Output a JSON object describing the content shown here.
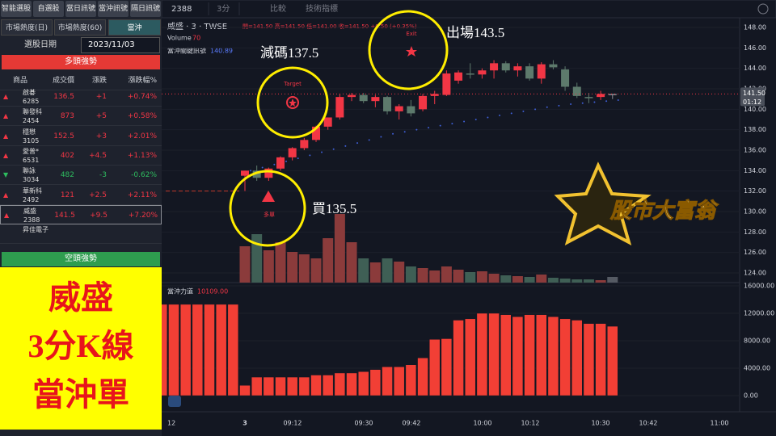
{
  "left_panel": {
    "tabs": [
      "智能選股",
      "自選股",
      "當日訊號",
      "當沖訊號",
      "隔日訊號"
    ],
    "subtabs": [
      "市場熱度(日)",
      "市場熱度(60)",
      "當沖"
    ],
    "date_label": "選股日期",
    "date": "2023/11/03",
    "bull_header": "多頭強勢",
    "columns": [
      "商品",
      "成交價",
      "漲跌",
      "漲跌幅%"
    ],
    "rows": [
      [
        "啟碁",
        "6285",
        "136.5",
        "+1",
        "+0.74%"
      ],
      [
        "聯發科",
        "2454",
        "873",
        "+5",
        "+0.58%"
      ],
      [
        "穩懋",
        "3105",
        "152.5",
        "+3",
        "+2.01%"
      ],
      [
        "愛普*",
        "6531",
        "402",
        "+4.5",
        "+1.13%"
      ],
      [
        "聯詠",
        "3034",
        "482",
        "-3",
        "-0.62%"
      ],
      [
        "華新科",
        "2492",
        "121",
        "+2.5",
        "+2.11%"
      ],
      [
        "威盛",
        "2388",
        "141.5",
        "+9.5",
        "+7.20%"
      ],
      [
        "昇佳電子",
        "",
        "",
        "",
        ""
      ]
    ],
    "bear_header": "空頭強勢",
    "caption": [
      "威盛",
      "3分K線",
      "當沖單"
    ]
  },
  "toolbar": {
    "symbol": "2388",
    "interval": "3分",
    "compare": "比較",
    "indicators": "技術指標"
  },
  "legend": {
    "title": "威盛 · 3 · TWSE",
    "ohlc": "開=141.50 高=141.50 低=141.00 收=141.50 +0.50 (+0.35%)",
    "volume_label": "Volume",
    "volume_value": "70",
    "signal_label": "當沖關鍵訊號",
    "signal_value": "140.89",
    "power_label": "當沖力道",
    "power_value": "10109.00"
  },
  "annotations": {
    "reduce": "減碼137.5",
    "exit": "出場143.5",
    "buy": "買135.5",
    "target_tag": "Target",
    "exit_tag": "Exit",
    "long_tag": "多單"
  },
  "logo": "股市大富翁",
  "chart_data": {
    "type": "candlestick",
    "x_labels": [
      "12",
      "3",
      "09:12",
      "09:30",
      "09:42",
      "10:00",
      "10:12",
      "10:30",
      "10:42",
      "11:00"
    ],
    "open": [
      133.5,
      134,
      133.3,
      134.2,
      135.3,
      136.2,
      137,
      138.3,
      139.2,
      141.2,
      141.4,
      140.8,
      141.2,
      139.8,
      140.3,
      140,
      141.3,
      141.4,
      142.8,
      143.5,
      143.4,
      143.8,
      144.5,
      143.8,
      144.2,
      143,
      144.4,
      143.9,
      142.2,
      141.2,
      141.2,
      141.5
    ],
    "high": [
      134,
      134.5,
      134.3,
      135.4,
      136.3,
      137.2,
      138.4,
      139.2,
      141.5,
      141.6,
      141.6,
      141.4,
      141.3,
      140.5,
      140.9,
      141.5,
      141.8,
      143.8,
      143.8,
      144.5,
      144,
      144.8,
      144.7,
      144.5,
      144.5,
      144.6,
      144.8,
      144.2,
      142.6,
      141.6,
      141.8,
      141.5
    ],
    "low": [
      132,
      133,
      133,
      134,
      135,
      136,
      136.8,
      138,
      139,
      140.8,
      140.6,
      140.2,
      139.5,
      139,
      139.3,
      139.8,
      140.5,
      141.3,
      142.5,
      143,
      143,
      143,
      143.6,
      143.2,
      142.8,
      142.5,
      143.9,
      141.8,
      141.1,
      140.6,
      140.9,
      141
    ],
    "close": [
      134,
      133.3,
      134.2,
      135.3,
      136.2,
      137,
      138.3,
      139.2,
      141.2,
      141.4,
      140.8,
      141.2,
      139.8,
      140.3,
      139.6,
      141.3,
      141.5,
      143.5,
      143.6,
      143.4,
      143.8,
      144.5,
      143.8,
      144.2,
      143,
      144.4,
      144.1,
      142.2,
      141.3,
      141.1,
      141.5,
      141.5
    ],
    "volume": [
      450,
      600,
      400,
      500,
      380,
      350,
      300,
      550,
      850,
      500,
      300,
      250,
      300,
      260,
      200,
      180,
      150,
      200,
      160,
      130,
      140,
      110,
      90,
      80,
      70,
      100,
      60,
      50,
      40,
      40,
      30,
      70
    ],
    "signal": [
      134,
      134.3,
      134.6,
      134.9,
      135.2,
      135.5,
      135.8,
      136.1,
      136.4,
      136.7,
      137,
      137.3,
      137.6,
      137.8,
      138,
      138.2,
      138.4,
      138.6,
      138.8,
      139,
      139.2,
      139.4,
      139.6,
      139.8,
      140,
      140.2,
      140.35,
      140.5,
      140.6,
      140.7,
      140.8,
      140.89
    ],
    "reference_line": 132,
    "up_color": "#f23645",
    "down_color": "#5d7a6c",
    "flat_color": "#8a8d94",
    "signal_color": "#3f5fd6",
    "ylim": [
      124,
      148
    ],
    "yticks": [
      {
        "value": 148,
        "label": "148.00"
      },
      {
        "value": 146,
        "label": "146.00"
      },
      {
        "value": 144,
        "label": "144.00"
      },
      {
        "value": 142,
        "label": "142.00"
      },
      {
        "value": 140,
        "label": "140.00"
      },
      {
        "value": 138,
        "label": "138.00"
      },
      {
        "value": 136,
        "label": "136.00"
      },
      {
        "value": 134,
        "label": "134.00"
      },
      {
        "value": 132,
        "label": "132.00"
      },
      {
        "value": 130,
        "label": "130.00"
      },
      {
        "value": 128,
        "label": "128.00"
      },
      {
        "value": 126,
        "label": "126.00"
      },
      {
        "value": 124,
        "label": "124.00"
      }
    ],
    "last_price": {
      "value": 141.5,
      "label": "141.50"
    },
    "countdown": "01:12",
    "power": {
      "type": "bar",
      "color": "#f23f35",
      "values": [
        13300,
        13300,
        13300,
        13300,
        13300,
        13300,
        13300,
        1500,
        2700,
        2700,
        2700,
        2700,
        2700,
        3000,
        3000,
        3300,
        3300,
        3500,
        3800,
        4200,
        4200,
        4500,
        5500,
        8200,
        8300,
        11000,
        11200,
        12000,
        12000,
        11800,
        11500,
        11800,
        11800,
        11500,
        11200,
        11000,
        10500,
        10500,
        10109
      ],
      "ylim": [
        0,
        16000
      ],
      "yticks": [
        {
          "value": 16000,
          "label": "16000.00"
        },
        {
          "value": 12000,
          "label": "12000.00"
        },
        {
          "value": 8000,
          "label": "8000.00"
        },
        {
          "value": 4000,
          "label": "4000.00"
        },
        {
          "value": 0,
          "label": "0.00"
        }
      ]
    }
  }
}
